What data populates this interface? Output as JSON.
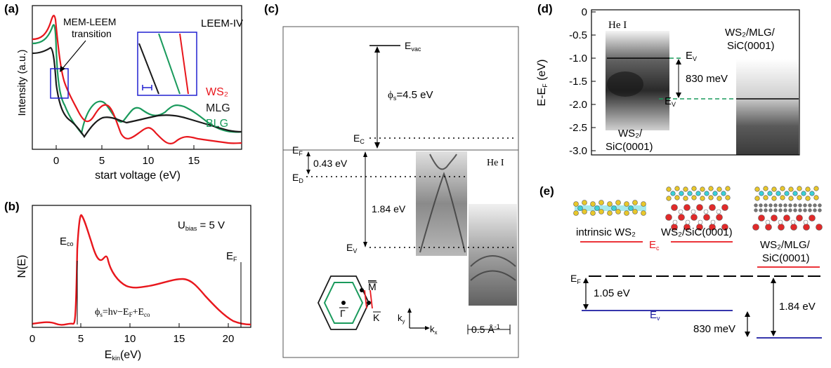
{
  "panels": {
    "a": {
      "label": "(a)",
      "mode_label": "LEEM-IV",
      "annotation": "MEM-LEEM\ntransition",
      "ylabel": "Intensity (a.u.)",
      "xlabel": "start voltage (eV)",
      "xticks": [
        "0",
        "5",
        "10",
        "15"
      ],
      "legend": [
        {
          "name": "WS₂",
          "color": "#e8171d"
        },
        {
          "name": "MLG",
          "color": "#1a1a1a"
        },
        {
          "name": "BLG",
          "color": "#1a9a5c"
        }
      ]
    },
    "b": {
      "label": "(b)",
      "bias": "U",
      "bias_sub": "bias",
      "bias_value": " = 5 V",
      "ylabel": "N(E)",
      "xlabel": "E",
      "xlabel_sub": "kin",
      "xlabel_unit": "(eV)",
      "xticks": [
        "0",
        "5",
        "10",
        "15",
        "20"
      ],
      "eco": "E",
      "eco_sub": "co",
      "ef": "E",
      "ef_sub": "F",
      "formula": "ϕₛ=hν−E_F+E_co"
    },
    "c": {
      "label": "(c)",
      "evac": "E",
      "evac_sub": "vac",
      "phi": "ϕ",
      "phi_sub": "s",
      "phi_value": "=4.5 eV",
      "ec": "E",
      "ec_sub": "C",
      "ef": "E",
      "ef_sub": "F",
      "ed": "E",
      "ed_sub": "D",
      "ev": "E",
      "ev_sub": "V",
      "gap1": "0.43 eV",
      "gap2": "1.84 eV",
      "source": "He I",
      "bz_m": "M",
      "bz_k": "K",
      "bz_gamma": "Γ",
      "ky": "k",
      "ky_sub": "y",
      "kx": "k",
      "kx_sub": "x",
      "scale": "0.5 Å",
      "scale_sup": "-1"
    },
    "d": {
      "label": "(d)",
      "ylabel": "E-E",
      "ylabel_sub": "F",
      "ylabel_unit": "(eV)",
      "yticks": [
        "0",
        "-0.5",
        "-1.0",
        "-1.5",
        "-2.0",
        "-2.5",
        "-3.0"
      ],
      "source": "He I",
      "left_sample": [
        "WS₂/",
        "SiC(0001)"
      ],
      "right_sample": [
        "WS₂/MLG/",
        "SiC(0001)"
      ],
      "ev": "E",
      "ev_sub": "V",
      "shift": "830 meV"
    },
    "e": {
      "label": "(e)",
      "struct1": "intrinsic WS₂",
      "struct2": "WS₂/SiC(0001)",
      "struct3": [
        "WS₂/MLG/",
        "SiC(0001)"
      ],
      "ec": "E",
      "ec_sub": "c",
      "ef": "E",
      "ef_sub": "F",
      "ev": "E",
      "ev_sub": "v",
      "gap1": "1.05 eV",
      "gap2": "1.84 eV",
      "shift": "830 meV"
    }
  },
  "colors": {
    "red": "#e8171d",
    "black": "#1a1a1a",
    "green": "#1a9a5c",
    "blue": "#1a1aa0",
    "boxblue": "#2020d0"
  }
}
